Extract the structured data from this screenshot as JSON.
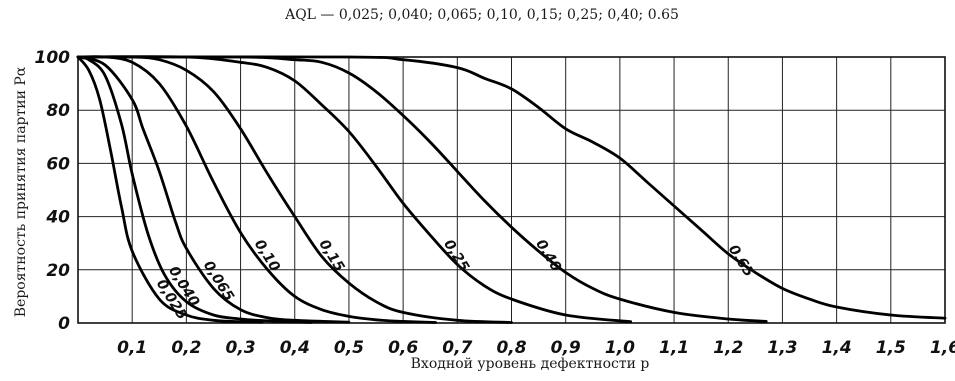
{
  "chart_data": {
    "type": "line",
    "title": "AQL — 0,025; 0,040; 0,065; 0,10, 0,15; 0,25; 0,40; 0.65",
    "xlabel": "Входной уровень дефектности p",
    "ylabel": "Вероятность принятия партии Pα",
    "xlim": [
      0,
      1.6
    ],
    "ylim": [
      0,
      100
    ],
    "x_ticks": [
      0.1,
      0.2,
      0.3,
      0.4,
      0.5,
      0.6,
      0.7,
      0.8,
      0.9,
      1.0,
      1.1,
      1.2,
      1.3,
      1.4,
      1.5,
      1.6
    ],
    "x_tick_labels": [
      "0,1",
      "0,2",
      "0,3",
      "0,4",
      "0,5",
      "0,6",
      "0,7",
      "0,8",
      "0,9",
      "1,0",
      "1,1",
      "1,2",
      "1,3",
      "1,4",
      "1,5",
      "1,6"
    ],
    "y_ticks": [
      0,
      20,
      40,
      60,
      80,
      100
    ],
    "y_tick_labels": [
      "0",
      "20",
      "40",
      "60",
      "80",
      "100"
    ],
    "grid": true,
    "series": [
      {
        "name": "0,025",
        "x": [
          0,
          0.02,
          0.04,
          0.06,
          0.08,
          0.1,
          0.15,
          0.2,
          0.25,
          0.3,
          0.34
        ],
        "y": [
          100,
          95,
          84,
          65,
          44,
          27,
          9,
          3,
          1,
          0.5,
          0.3
        ]
      },
      {
        "name": "0,040",
        "x": [
          0,
          0.02,
          0.05,
          0.08,
          0.1,
          0.13,
          0.16,
          0.2,
          0.25,
          0.3,
          0.35,
          0.4,
          0.43
        ],
        "y": [
          100,
          99,
          93,
          75,
          56,
          33,
          18,
          8,
          3,
          1.5,
          0.8,
          0.4,
          0.2
        ]
      },
      {
        "name": "0,065",
        "x": [
          0,
          0.05,
          0.1,
          0.12,
          0.15,
          0.18,
          0.2,
          0.25,
          0.3,
          0.35,
          0.4,
          0.5
        ],
        "y": [
          100,
          97,
          84,
          73,
          57,
          38,
          28,
          13,
          5,
          2,
          1,
          0.3
        ]
      },
      {
        "name": "0,10",
        "x": [
          0,
          0.05,
          0.1,
          0.15,
          0.2,
          0.25,
          0.3,
          0.35,
          0.4,
          0.45,
          0.5,
          0.55,
          0.6,
          0.66
        ],
        "y": [
          100,
          100,
          98,
          90,
          74,
          53,
          34,
          20,
          10,
          5,
          2.5,
          1.2,
          0.6,
          0.2
        ]
      },
      {
        "name": "0,15",
        "x": [
          0,
          0.1,
          0.15,
          0.2,
          0.25,
          0.3,
          0.35,
          0.4,
          0.45,
          0.5,
          0.55,
          0.6,
          0.7,
          0.8
        ],
        "y": [
          100,
          100,
          99,
          95,
          87,
          73,
          56,
          40,
          25,
          15,
          8,
          4,
          1,
          0.2
        ]
      },
      {
        "name": "0,25",
        "x": [
          0,
          0.2,
          0.3,
          0.35,
          0.4,
          0.45,
          0.5,
          0.55,
          0.6,
          0.65,
          0.7,
          0.75,
          0.8,
          0.9,
          1.02
        ],
        "y": [
          100,
          100,
          98,
          96,
          91,
          82,
          72,
          59,
          45,
          33,
          22,
          14,
          9,
          3,
          0.5
        ]
      },
      {
        "name": "0,40",
        "x": [
          0,
          0.3,
          0.4,
          0.45,
          0.5,
          0.55,
          0.6,
          0.65,
          0.7,
          0.75,
          0.8,
          0.85,
          0.9,
          0.95,
          1.0,
          1.1,
          1.2,
          1.27
        ],
        "y": [
          100,
          100,
          99,
          98,
          94,
          87,
          78,
          68,
          57,
          46,
          36,
          27,
          19,
          13,
          9,
          4,
          1.5,
          0.6
        ]
      },
      {
        "name": "0,65",
        "x": [
          0,
          0.5,
          0.6,
          0.7,
          0.75,
          0.8,
          0.85,
          0.9,
          0.95,
          1.0,
          1.05,
          1.1,
          1.15,
          1.2,
          1.25,
          1.3,
          1.35,
          1.4,
          1.5,
          1.6
        ],
        "y": [
          100,
          100,
          99,
          96,
          92,
          88,
          81,
          73,
          68,
          62,
          53,
          44,
          35,
          26,
          19,
          13,
          9,
          6,
          3,
          1.8
        ]
      }
    ]
  }
}
